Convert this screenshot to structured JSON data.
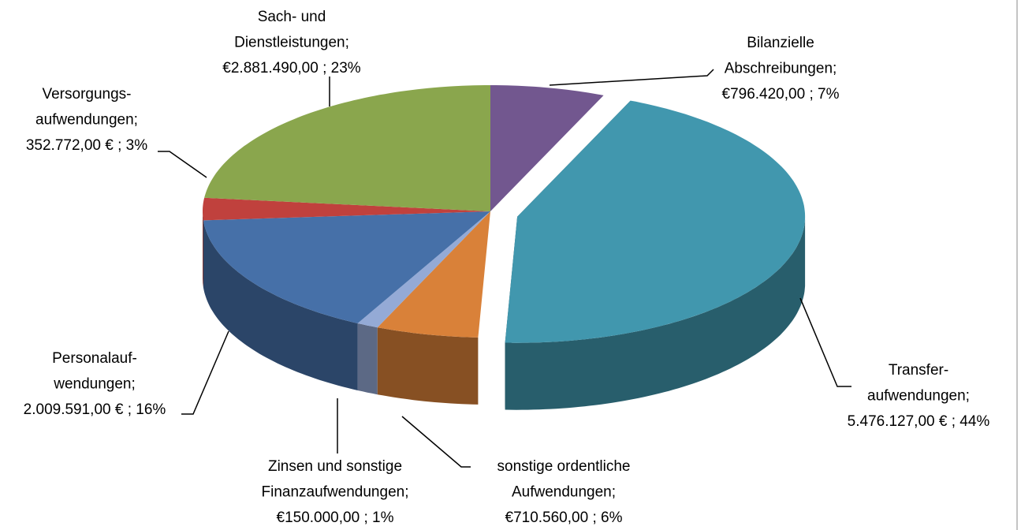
{
  "chart_data": {
    "type": "pie3d",
    "categories": [
      [
        "Bilanzielle",
        "Abschreibungen;"
      ],
      [
        "Transfer-",
        "aufwendungen;"
      ],
      [
        "sonstige ordentliche",
        "Aufwendungen;"
      ],
      [
        "Zinsen und sonstige",
        "Finanzaufwendungen;"
      ],
      [
        "Personalauf-",
        "wendungen;"
      ],
      [
        "Versorgungs-",
        "aufwendungen;"
      ],
      [
        "Sach- und",
        "Dienstleistungen;"
      ]
    ],
    "values": [
      796420,
      5476127,
      710560,
      150000,
      2009591,
      352772,
      2881490
    ],
    "value_labels": [
      "€796.420,00",
      "5.476.127,00 €",
      "€710.560,00",
      "€150.000,00",
      "2.009.591,00 €",
      "352.772,00 €",
      "€2.881.490,00"
    ],
    "separator": " ; ",
    "percents": [
      7,
      44,
      6,
      1,
      16,
      3,
      23
    ],
    "percent_labels": [
      "7%",
      "44%",
      "6%",
      "1%",
      "16%",
      "3%",
      "23%"
    ],
    "colors": [
      "#72578f",
      "#4197ae",
      "#d98139",
      "#94aad6",
      "#4670a8",
      "#c0413d",
      "#8aa64d"
    ],
    "exploded": [
      1
    ]
  }
}
